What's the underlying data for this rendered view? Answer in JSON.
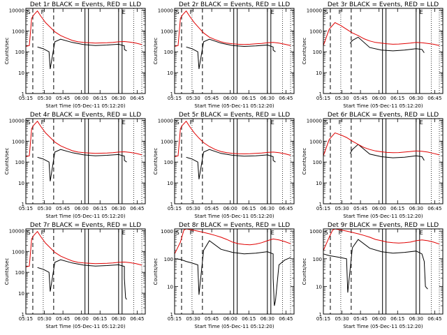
{
  "colors": {
    "events": "#000000",
    "lld": "#e00000",
    "axes": "#000000"
  },
  "shared": {
    "xlabel": "Start Time (05-Dec-11 05:12:20)",
    "ylabel": "Counts/sec",
    "x_tick_labels": [
      "05:15",
      "05:30",
      "05:45",
      "06:00",
      "06:15",
      "06:30",
      "06:45"
    ],
    "y_tick_labels": [
      "1",
      "10",
      "100",
      "1000",
      "10000"
    ]
  },
  "chart_data": [
    {
      "type": "line",
      "panel": "det-1r",
      "title": "Det 1r BLACK = Events, RED = LLD",
      "markers": [
        "S",
        "F",
        "E"
      ],
      "xlabel": "Start Time (05-Dec-11 05:12:20)",
      "ylabel": "Counts/sec",
      "xlim": [
        -0.05,
        0.98
      ],
      "ylim": [
        1,
        12000
      ],
      "yscale": "log",
      "series": [
        {
          "name": "Events (BLACK)",
          "x": [
            0.05,
            0.08,
            0.1,
            0.15,
            0.16,
            0.2,
            0.25,
            0.35,
            0.45,
            0.55,
            0.65,
            0.75,
            0.8,
            0.8,
            0.82
          ],
          "y": [
            170,
            150,
            140,
            100,
            15,
            300,
            400,
            280,
            220,
            200,
            210,
            230,
            190,
            130,
            110
          ]
        },
        {
          "name": "LLD (RED)",
          "x": [
            -0.05,
            -0.02,
            0,
            0.02,
            0.05,
            0.08,
            0.12,
            0.16,
            0.2,
            0.25,
            0.3,
            0.35,
            0.4,
            0.45,
            0.5,
            0.55,
            0.6,
            0.65,
            0.7,
            0.75,
            0.8,
            0.85,
            0.9,
            0.95
          ],
          "y": [
            180,
            200,
            4000,
            6000,
            9000,
            5000,
            2500,
            1500,
            900,
            600,
            450,
            350,
            300,
            280,
            270,
            260,
            265,
            270,
            280,
            300,
            310,
            290,
            260,
            220
          ]
        }
      ]
    },
    {
      "type": "line",
      "panel": "det-2r",
      "title": "Det 2r BLACK = Events, RED = LLD",
      "markers": [
        "S",
        "F",
        "E"
      ],
      "xlabel": "Start Time (05-Dec-11 05:12:20)",
      "ylabel": "Counts/sec",
      "xlim": [
        -0.05,
        0.98
      ],
      "ylim": [
        1,
        12000
      ],
      "yscale": "log",
      "series": [
        {
          "name": "Events (BLACK)",
          "x": [
            0.05,
            0.08,
            0.1,
            0.15,
            0.16,
            0.2,
            0.25,
            0.35,
            0.45,
            0.55,
            0.65,
            0.75,
            0.8,
            0.8,
            0.82
          ],
          "y": [
            170,
            150,
            140,
            100,
            15,
            300,
            400,
            260,
            200,
            180,
            190,
            210,
            170,
            120,
            100
          ]
        },
        {
          "name": "LLD (RED)",
          "x": [
            -0.05,
            -0.02,
            0,
            0.02,
            0.05,
            0.08,
            0.12,
            0.16,
            0.2,
            0.25,
            0.3,
            0.35,
            0.4,
            0.45,
            0.5,
            0.55,
            0.6,
            0.65,
            0.7,
            0.75,
            0.8,
            0.85,
            0.9,
            0.95
          ],
          "y": [
            180,
            200,
            4000,
            6000,
            9000,
            5000,
            2500,
            1400,
            800,
            500,
            380,
            300,
            260,
            240,
            230,
            225,
            230,
            240,
            250,
            270,
            280,
            260,
            230,
            200
          ]
        }
      ]
    },
    {
      "type": "line",
      "panel": "det-3r",
      "title": "Det 3r BLACK = Events, RED = LLD",
      "markers": [
        "S",
        "F",
        "E"
      ],
      "xlabel": "Start Time (05-Dec-11 05:12:20)",
      "ylabel": "Counts/sec",
      "xlim": [
        -0.05,
        0.98
      ],
      "ylim": [
        1,
        12000
      ],
      "yscale": "log",
      "series": [
        {
          "name": "Events (BLACK)",
          "x": [
            0.18,
            0.2,
            0.25,
            0.35,
            0.45,
            0.55,
            0.65,
            0.75,
            0.8,
            0.82
          ],
          "y": [
            250,
            350,
            500,
            160,
            120,
            110,
            120,
            140,
            130,
            90
          ]
        },
        {
          "name": "LLD (RED)",
          "x": [
            -0.05,
            0,
            0.05,
            0.1,
            0.15,
            0.2,
            0.25,
            0.3,
            0.35,
            0.4,
            0.45,
            0.5,
            0.55,
            0.6,
            0.65,
            0.7,
            0.75,
            0.8,
            0.85,
            0.9,
            0.95
          ],
          "y": [
            200,
            1200,
            2500,
            1800,
            1200,
            800,
            600,
            420,
            330,
            280,
            260,
            240,
            230,
            235,
            245,
            260,
            280,
            270,
            250,
            230,
            200
          ]
        }
      ]
    },
    {
      "type": "line",
      "panel": "det-4r",
      "title": "Det 4r BLACK = Events, RED = LLD",
      "markers": [
        "S",
        "F",
        "E"
      ],
      "xlabel": "Start Time (05-Dec-11 05:12:20)",
      "ylabel": "Counts/sec",
      "xlim": [
        -0.05,
        0.98
      ],
      "ylim": [
        1,
        12000
      ],
      "yscale": "log",
      "series": [
        {
          "name": "Events (BLACK)",
          "x": [
            0.05,
            0.08,
            0.1,
            0.15,
            0.16,
            0.2,
            0.25,
            0.35,
            0.45,
            0.55,
            0.65,
            0.75,
            0.8,
            0.8,
            0.82
          ],
          "y": [
            170,
            150,
            140,
            100,
            12,
            300,
            400,
            280,
            220,
            200,
            210,
            230,
            190,
            120,
            100
          ]
        },
        {
          "name": "LLD (RED)",
          "x": [
            -0.05,
            -0.02,
            0,
            0.02,
            0.05,
            0.08,
            0.12,
            0.16,
            0.2,
            0.25,
            0.3,
            0.35,
            0.4,
            0.45,
            0.5,
            0.55,
            0.6,
            0.65,
            0.7,
            0.75,
            0.8,
            0.85,
            0.9,
            0.95
          ],
          "y": [
            180,
            200,
            4000,
            6000,
            9000,
            5000,
            2500,
            1500,
            900,
            600,
            450,
            350,
            300,
            280,
            270,
            260,
            265,
            270,
            280,
            300,
            310,
            290,
            260,
            220
          ]
        }
      ]
    },
    {
      "type": "line",
      "panel": "det-5r",
      "title": "Det 5r BLACK = Events, RED = LLD",
      "markers": [
        "S",
        "F",
        "E"
      ],
      "xlabel": "Start Time (05-Dec-11 05:12:20)",
      "ylabel": "Counts/sec",
      "xlim": [
        -0.05,
        0.98
      ],
      "ylim": [
        1,
        12000
      ],
      "yscale": "log",
      "series": [
        {
          "name": "Events (BLACK)",
          "x": [
            0.05,
            0.08,
            0.1,
            0.15,
            0.16,
            0.2,
            0.25,
            0.35,
            0.45,
            0.55,
            0.65,
            0.75,
            0.8,
            0.8,
            0.82
          ],
          "y": [
            170,
            150,
            140,
            100,
            15,
            300,
            400,
            260,
            210,
            190,
            200,
            220,
            180,
            120,
            100
          ]
        },
        {
          "name": "LLD (RED)",
          "x": [
            -0.05,
            -0.02,
            0,
            0.02,
            0.05,
            0.08,
            0.12,
            0.16,
            0.2,
            0.25,
            0.3,
            0.35,
            0.4,
            0.45,
            0.5,
            0.55,
            0.6,
            0.65,
            0.7,
            0.75,
            0.8,
            0.85,
            0.9,
            0.95
          ],
          "y": [
            180,
            200,
            4000,
            6000,
            9000,
            5000,
            2500,
            1400,
            850,
            550,
            400,
            320,
            280,
            260,
            250,
            245,
            250,
            260,
            270,
            290,
            300,
            280,
            250,
            210
          ]
        }
      ]
    },
    {
      "type": "line",
      "panel": "det-6r",
      "title": "Det 6r BLACK = Events, RED = LLD",
      "markers": [
        "S",
        "F",
        "E"
      ],
      "xlabel": "Start Time (05-Dec-11 05:12:20)",
      "ylabel": "Counts/sec",
      "xlim": [
        -0.05,
        0.98
      ],
      "ylim": [
        1,
        12000
      ],
      "yscale": "log",
      "series": [
        {
          "name": "Events (BLACK)",
          "x": [
            0.18,
            0.2,
            0.25,
            0.35,
            0.45,
            0.55,
            0.65,
            0.75,
            0.8,
            0.82
          ],
          "y": [
            250,
            400,
            700,
            240,
            180,
            160,
            170,
            200,
            180,
            120
          ]
        },
        {
          "name": "LLD (RED)",
          "x": [
            -0.05,
            0,
            0.05,
            0.1,
            0.15,
            0.2,
            0.25,
            0.3,
            0.35,
            0.4,
            0.45,
            0.5,
            0.55,
            0.6,
            0.65,
            0.7,
            0.75,
            0.8,
            0.85,
            0.9,
            0.95
          ],
          "y": [
            200,
            1200,
            2500,
            2000,
            1500,
            1000,
            700,
            500,
            400,
            340,
            310,
            290,
            280,
            285,
            300,
            320,
            340,
            330,
            300,
            260,
            220
          ]
        }
      ]
    },
    {
      "type": "line",
      "panel": "det-7r",
      "title": "Det 7r BLACK = Events, RED = LLD",
      "markers": [
        "S",
        "F",
        "E"
      ],
      "xlabel": "Start Time (05-Dec-11 05:12:20)",
      "ylabel": "Counts/sec",
      "xlim": [
        -0.05,
        0.98
      ],
      "ylim": [
        1,
        12000
      ],
      "yscale": "log",
      "series": [
        {
          "name": "Events (BLACK)",
          "x": [
            0.05,
            0.08,
            0.1,
            0.15,
            0.16,
            0.2,
            0.25,
            0.35,
            0.45,
            0.55,
            0.65,
            0.75,
            0.8,
            0.8,
            0.81,
            0.82
          ],
          "y": [
            170,
            150,
            140,
            100,
            12,
            300,
            400,
            280,
            220,
            200,
            210,
            230,
            190,
            50,
            6,
            5
          ]
        },
        {
          "name": "LLD (RED)",
          "x": [
            -0.05,
            -0.02,
            0,
            0.02,
            0.05,
            0.08,
            0.12,
            0.16,
            0.2,
            0.25,
            0.3,
            0.35,
            0.4,
            0.45,
            0.5,
            0.55,
            0.6,
            0.65,
            0.7,
            0.75,
            0.8,
            0.85,
            0.9,
            0.95
          ],
          "y": [
            180,
            200,
            4000,
            6000,
            9000,
            5000,
            2500,
            1500,
            900,
            600,
            450,
            350,
            300,
            280,
            270,
            260,
            265,
            270,
            280,
            300,
            310,
            290,
            260,
            220
          ]
        }
      ]
    },
    {
      "type": "line",
      "panel": "det-8r",
      "title": "Det 8r BLACK = Events, RED = LLD",
      "markers": [
        "S",
        "F",
        "E"
      ],
      "xlabel": "Start Time (05-Dec-11 05:12:20)",
      "ylabel": "Counts/sec",
      "xlim": [
        -0.05,
        0.98
      ],
      "ylim": [
        1,
        1200
      ],
      "yscale": "log",
      "series": [
        {
          "name": "Events (BLACK)",
          "x": [
            -0.05,
            0,
            0.05,
            0.1,
            0.15,
            0.16,
            0.2,
            0.25,
            0.35,
            0.45,
            0.55,
            0.65,
            0.75,
            0.8,
            0.8,
            0.81,
            0.82,
            0.85,
            0.9,
            0.95
          ],
          "y": [
            100,
            95,
            80,
            70,
            60,
            5,
            200,
            450,
            220,
            170,
            150,
            160,
            180,
            150,
            20,
            2,
            3,
            60,
            90,
            110
          ]
        },
        {
          "name": "LLD (RED)",
          "x": [
            -0.05,
            0,
            0.03,
            0.05,
            0.1,
            0.15,
            0.2,
            0.25,
            0.3,
            0.35,
            0.4,
            0.45,
            0.5,
            0.55,
            0.6,
            0.65,
            0.7,
            0.75,
            0.8,
            0.85,
            0.9,
            0.95
          ],
          "y": [
            150,
            400,
            1100,
            1200,
            1100,
            1000,
            900,
            800,
            700,
            600,
            500,
            400,
            350,
            330,
            320,
            340,
            380,
            450,
            520,
            480,
            420,
            350
          ]
        }
      ]
    },
    {
      "type": "line",
      "panel": "det-9r",
      "title": "Det 9r BLACK = Events, RED = LLD",
      "markers": [
        "S",
        "F",
        "E"
      ],
      "xlabel": "Start Time (05-Dec-11 05:12:20)",
      "ylabel": "Counts/sec",
      "xlim": [
        -0.05,
        0.98
      ],
      "ylim": [
        1,
        1200
      ],
      "yscale": "log",
      "series": [
        {
          "name": "Events (BLACK)",
          "x": [
            -0.05,
            0,
            0.05,
            0.1,
            0.15,
            0.16,
            0.2,
            0.25,
            0.35,
            0.45,
            0.55,
            0.65,
            0.75,
            0.8,
            0.82,
            0.83,
            0.85
          ],
          "y": [
            150,
            130,
            120,
            110,
            100,
            6,
            250,
            500,
            240,
            180,
            160,
            170,
            190,
            150,
            80,
            10,
            8
          ]
        },
        {
          "name": "LLD (RED)",
          "x": [
            -0.05,
            0,
            0.03,
            0.05,
            0.1,
            0.15,
            0.2,
            0.25,
            0.3,
            0.35,
            0.4,
            0.45,
            0.5,
            0.55,
            0.6,
            0.65,
            0.7,
            0.75,
            0.8,
            0.85,
            0.9,
            0.95
          ],
          "y": [
            200,
            600,
            1100,
            1200,
            1100,
            1000,
            900,
            800,
            700,
            600,
            500,
            450,
            400,
            380,
            370,
            380,
            400,
            450,
            480,
            450,
            400,
            340
          ]
        }
      ]
    }
  ]
}
